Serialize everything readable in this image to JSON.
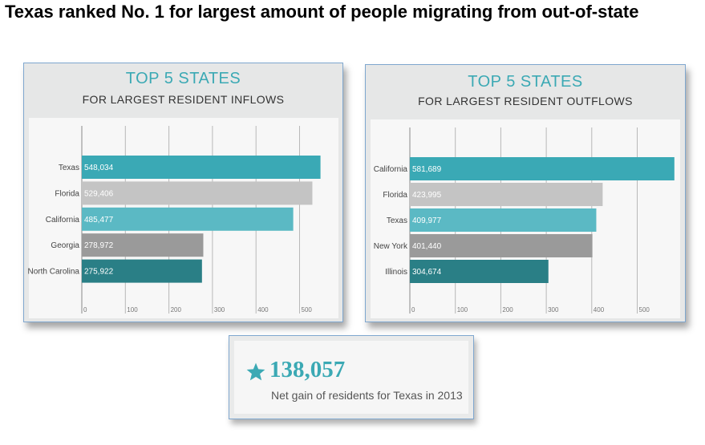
{
  "headline": "Texas ranked No. 1 for largest amount of people migrating from out-of-state",
  "colors": {
    "title": "#3ba9b4",
    "bar_teal": "#3aa9b5",
    "bar_silver": "#c4c4c4",
    "bar_light_teal": "#5bb9c4",
    "bar_gray": "#9a9a9a",
    "bar_dark_teal": "#2a7f86",
    "star": "#3ba9b4"
  },
  "inflow": {
    "title": "TOP 5 STATES",
    "subtitle": "FOR LARGEST RESIDENT INFLOWS"
  },
  "outflow": {
    "title": "TOP 5 STATES",
    "subtitle": "FOR LARGEST RESIDENT OUTFLOWS"
  },
  "stat": {
    "icon": "star-icon",
    "value": "138,057",
    "caption": "Net gain of residents for Texas in 2013"
  },
  "chart_data": [
    {
      "type": "bar",
      "orientation": "horizontal",
      "title": "TOP 5 STATES",
      "subtitle": "FOR LARGEST RESIDENT INFLOWS",
      "categories": [
        "Texas",
        "Florida",
        "California",
        "Georgia",
        "North Carolina"
      ],
      "values": [
        548034,
        529406,
        485477,
        278972,
        275922
      ],
      "value_labels": [
        "548,034",
        "529,406",
        "485,477",
        "278,972",
        "275,922"
      ],
      "bar_colors": [
        "#3aa9b5",
        "#c4c4c4",
        "#5bb9c4",
        "#9a9a9a",
        "#2a7f86"
      ],
      "xticks": [
        "0",
        "100",
        "200",
        "300",
        "400",
        "500"
      ],
      "xlim": [
        0,
        600000
      ],
      "grid": true
    },
    {
      "type": "bar",
      "orientation": "horizontal",
      "title": "TOP 5 STATES",
      "subtitle": "FOR LARGEST RESIDENT OUTFLOWS",
      "categories": [
        "California",
        "Florida",
        "Texas",
        "New York",
        "Illinois"
      ],
      "values": [
        581689,
        423995,
        409977,
        401440,
        304674
      ],
      "value_labels": [
        "581,689",
        "423,995",
        "409,977",
        "401,440",
        "304,674"
      ],
      "bar_colors": [
        "#3aa9b5",
        "#c4c4c4",
        "#5bb9c4",
        "#9a9a9a",
        "#2a7f86"
      ],
      "xticks": [
        "0",
        "100",
        "200",
        "300",
        "400",
        "500"
      ],
      "xlim": [
        0,
        600000
      ],
      "grid": true
    }
  ]
}
